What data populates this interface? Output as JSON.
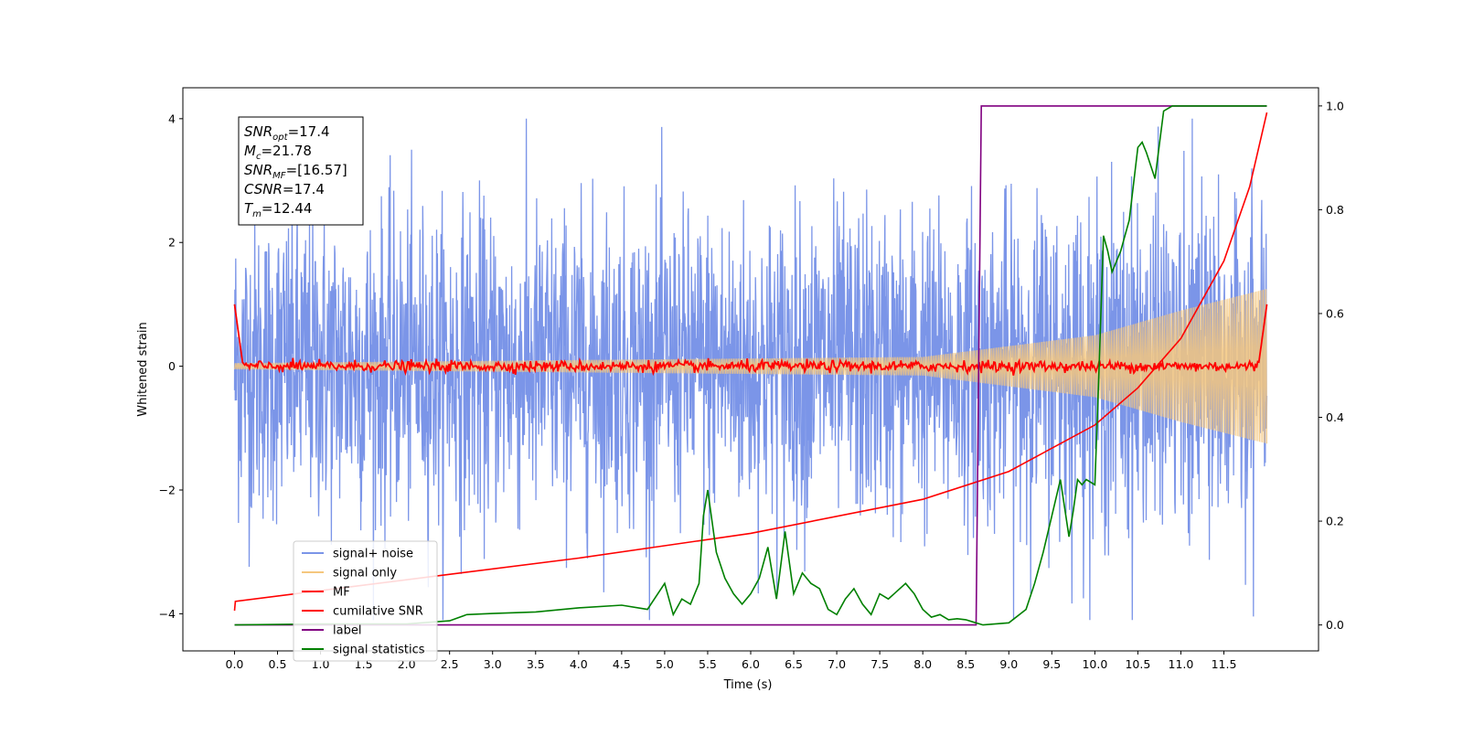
{
  "chart_data": {
    "type": "line",
    "title": "",
    "xlabel": "Time (s)",
    "ylabel": "Whitened strain",
    "y2label": "",
    "xlim": [
      -0.6,
      12.6
    ],
    "ylim": [
      -4.6,
      4.5
    ],
    "y2lim": [
      -0.05,
      1.035
    ],
    "grid": false,
    "legend_position": "lower-left",
    "x_ticks": [
      "0.0",
      "0.5",
      "1.0",
      "1.5",
      "2.0",
      "2.5",
      "3.0",
      "3.5",
      "4.0",
      "4.5",
      "5.0",
      "5.5",
      "6.0",
      "6.5",
      "7.0",
      "7.5",
      "8.0",
      "8.5",
      "9.0",
      "9.5",
      "10.0",
      "10.5",
      "11.0",
      "11.5"
    ],
    "y_ticks": [
      "4",
      "2",
      "0",
      "−2",
      "−4"
    ],
    "y2_ticks": [
      "1.0",
      "0.8",
      "0.6",
      "0.4",
      "0.2",
      "0.0"
    ],
    "info_box": {
      "snr_opt": "=17.4",
      "mc": "=21.78",
      "snr_mf": "=[16.57]",
      "csnr": "=17.4",
      "tm": "=12.44"
    },
    "series": [
      {
        "name": "signal+ noise",
        "axis": "left",
        "color": "#7b95e8",
        "description_values": {
          "x_start": 0.0,
          "x_end": 12.0,
          "amplitude_range": [
            -4.1,
            4.0
          ]
        }
      },
      {
        "name": "signal only",
        "axis": "left",
        "color": "#f5c77e",
        "description_values": {
          "x_start": 0.0,
          "x_end": 12.0,
          "envelope": [
            [
              0.0,
              0.05
            ],
            [
              8.0,
              0.15
            ],
            [
              10.0,
              0.5
            ],
            [
              11.0,
              0.9
            ],
            [
              12.0,
              1.25
            ]
          ]
        }
      },
      {
        "name": "MF",
        "axis": "left",
        "color": "#ff0000",
        "x": [
          0.0,
          0.05,
          0.1,
          11.9,
          11.95,
          12.0
        ],
        "y": [
          1.0,
          0.5,
          0.0,
          0.05,
          0.6,
          1.0
        ]
      },
      {
        "name": "cumilative SNR",
        "axis": "left",
        "color": "#ff0000",
        "x": [
          0.0,
          0.01,
          2.0,
          4.0,
          6.0,
          8.0,
          9.0,
          10.0,
          10.5,
          11.0,
          11.5,
          11.8,
          12.0
        ],
        "y": [
          -3.95,
          -3.8,
          -3.45,
          -3.1,
          -2.7,
          -2.15,
          -1.7,
          -0.95,
          -0.35,
          0.45,
          1.7,
          2.9,
          4.1
        ]
      },
      {
        "name": "label",
        "axis": "right",
        "color": "#800080",
        "x": [
          0.0,
          8.62,
          8.68,
          12.0
        ],
        "y": [
          0.0,
          0.0,
          1.0,
          1.0
        ]
      },
      {
        "name": "signal statistics",
        "axis": "right",
        "color": "#008000",
        "x": [
          0.0,
          1.0,
          2.0,
          2.5,
          2.7,
          3.0,
          3.5,
          4.0,
          4.5,
          4.8,
          5.0,
          5.1,
          5.2,
          5.3,
          5.4,
          5.45,
          5.5,
          5.6,
          5.7,
          5.8,
          5.9,
          6.0,
          6.1,
          6.2,
          6.3,
          6.4,
          6.5,
          6.6,
          6.7,
          6.8,
          6.9,
          7.0,
          7.1,
          7.2,
          7.3,
          7.4,
          7.5,
          7.6,
          7.7,
          7.8,
          7.9,
          8.0,
          8.1,
          8.2,
          8.3,
          8.4,
          8.5,
          8.6,
          8.7,
          9.0,
          9.2,
          9.3,
          9.4,
          9.5,
          9.6,
          9.7,
          9.75,
          9.8,
          9.85,
          9.9,
          10.0,
          10.05,
          10.1,
          10.15,
          10.2,
          10.3,
          10.4,
          10.5,
          10.55,
          10.6,
          10.7,
          10.8,
          10.9,
          11.0,
          11.2,
          11.5,
          11.8,
          12.0
        ],
        "y": [
          0.0,
          0.002,
          0.002,
          0.008,
          0.02,
          0.022,
          0.025,
          0.033,
          0.038,
          0.03,
          0.08,
          0.02,
          0.05,
          0.04,
          0.08,
          0.21,
          0.26,
          0.14,
          0.09,
          0.06,
          0.04,
          0.06,
          0.09,
          0.15,
          0.05,
          0.18,
          0.06,
          0.1,
          0.08,
          0.07,
          0.03,
          0.02,
          0.05,
          0.07,
          0.04,
          0.02,
          0.06,
          0.05,
          0.065,
          0.08,
          0.06,
          0.03,
          0.015,
          0.02,
          0.01,
          0.012,
          0.01,
          0.005,
          0.0,
          0.004,
          0.03,
          0.08,
          0.14,
          0.21,
          0.28,
          0.17,
          0.22,
          0.28,
          0.27,
          0.28,
          0.27,
          0.5,
          0.75,
          0.72,
          0.68,
          0.72,
          0.78,
          0.92,
          0.93,
          0.91,
          0.86,
          0.99,
          1.0,
          1.0,
          1.0,
          1.0,
          1.0,
          1.0
        ]
      }
    ]
  }
}
